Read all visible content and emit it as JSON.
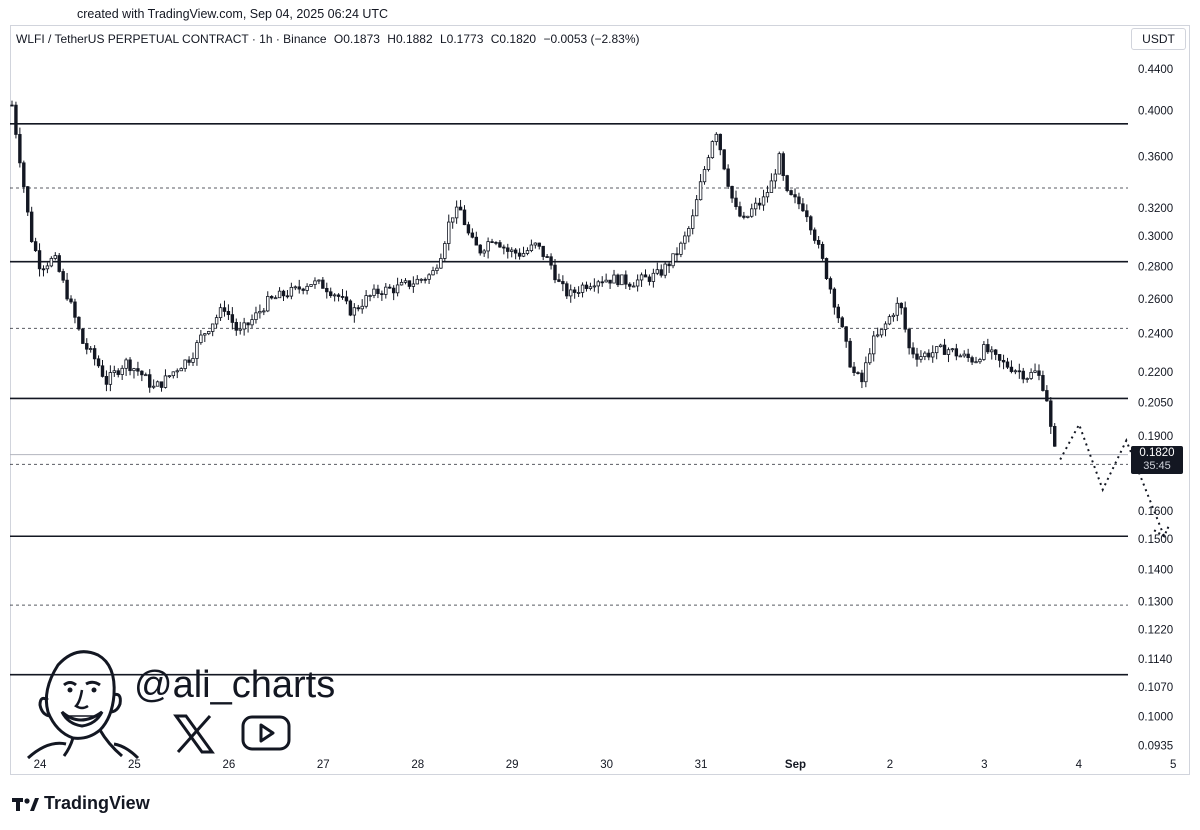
{
  "created_text": "created with TradingView.com, Sep 04, 2025 06:24 UTC",
  "header": {
    "symbol": "WLFI / TetherUS PERPETUAL CONTRACT · 1h · Binance",
    "open": "O0.1873",
    "high": "H0.1882",
    "low": "L0.1773",
    "close": "C0.1820",
    "change": "−0.0053 (−2.83%)"
  },
  "currency": "USDT",
  "last_price": "0.1820",
  "countdown": "35:45",
  "handle": "@ali_charts",
  "brand": "TradingView",
  "icons": [
    "avatar-caricature",
    "x-icon",
    "youtube-icon",
    "tradingview-logo-icon"
  ],
  "chart_data": {
    "type": "candlestick",
    "x_tick_labels": [
      "24",
      "25",
      "26",
      "27",
      "28",
      "29",
      "30",
      "31",
      "Sep",
      "2",
      "3",
      "4",
      "5"
    ],
    "y_tick_labels": [
      "0.4400",
      "0.4000",
      "0.3600",
      "0.3200",
      "0.3000",
      "0.2800",
      "0.2600",
      "0.2400",
      "0.2200",
      "0.2050",
      "0.1900",
      "0.1600",
      "0.1500",
      "0.1400",
      "0.1300",
      "0.1220",
      "0.1140",
      "0.1070",
      "0.1000",
      "0.0935"
    ],
    "y_scale": "log",
    "ylim": [
      0.0905,
      0.47
    ],
    "x_range_days": [
      24,
      35.5
    ],
    "grid": false,
    "horizontal_levels": [
      {
        "price": 0.388,
        "style": "solid"
      },
      {
        "price": 0.335,
        "style": "dashed"
      },
      {
        "price": 0.283,
        "style": "solid"
      },
      {
        "price": 0.243,
        "style": "dashed"
      },
      {
        "price": 0.207,
        "style": "solid"
      },
      {
        "price": 0.178,
        "style": "dashed"
      },
      {
        "price": 0.151,
        "style": "solid"
      },
      {
        "price": 0.129,
        "style": "dashed"
      },
      {
        "price": 0.11,
        "style": "solid"
      }
    ],
    "last_price_line": 0.182,
    "price_path_day_close": [
      [
        24.0,
        0.405
      ],
      [
        24.1,
        0.35
      ],
      [
        24.2,
        0.3
      ],
      [
        24.3,
        0.28
      ],
      [
        24.45,
        0.285
      ],
      [
        24.6,
        0.26
      ],
      [
        24.75,
        0.235
      ],
      [
        24.9,
        0.225
      ],
      [
        25.0,
        0.215
      ],
      [
        25.1,
        0.22
      ],
      [
        25.2,
        0.225
      ],
      [
        25.35,
        0.22
      ],
      [
        25.5,
        0.212
      ],
      [
        25.6,
        0.215
      ],
      [
        25.75,
        0.222
      ],
      [
        25.9,
        0.228
      ],
      [
        26.0,
        0.238
      ],
      [
        26.1,
        0.245
      ],
      [
        26.25,
        0.255
      ],
      [
        26.4,
        0.24
      ],
      [
        26.55,
        0.248
      ],
      [
        26.7,
        0.258
      ],
      [
        26.85,
        0.262
      ],
      [
        27.0,
        0.265
      ],
      [
        27.15,
        0.27
      ],
      [
        27.3,
        0.268
      ],
      [
        27.45,
        0.262
      ],
      [
        27.6,
        0.252
      ],
      [
        27.75,
        0.26
      ],
      [
        27.9,
        0.265
      ],
      [
        28.05,
        0.266
      ],
      [
        28.25,
        0.27
      ],
      [
        28.45,
        0.275
      ],
      [
        28.55,
        0.29
      ],
      [
        28.65,
        0.315
      ],
      [
        28.75,
        0.318
      ],
      [
        28.85,
        0.298
      ],
      [
        28.95,
        0.29
      ],
      [
        29.1,
        0.3
      ],
      [
        29.25,
        0.29
      ],
      [
        29.4,
        0.288
      ],
      [
        29.55,
        0.294
      ],
      [
        29.7,
        0.282
      ],
      [
        29.8,
        0.268
      ],
      [
        29.9,
        0.262
      ],
      [
        30.05,
        0.268
      ],
      [
        30.2,
        0.272
      ],
      [
        30.4,
        0.272
      ],
      [
        30.55,
        0.27
      ],
      [
        30.7,
        0.272
      ],
      [
        30.85,
        0.275
      ],
      [
        31.0,
        0.285
      ],
      [
        31.1,
        0.295
      ],
      [
        31.2,
        0.31
      ],
      [
        31.3,
        0.34
      ],
      [
        31.4,
        0.37
      ],
      [
        31.45,
        0.385
      ],
      [
        31.55,
        0.35
      ],
      [
        31.65,
        0.32
      ],
      [
        31.75,
        0.31
      ],
      [
        31.85,
        0.32
      ],
      [
        31.95,
        0.325
      ],
      [
        32.05,
        0.34
      ],
      [
        32.12,
        0.36
      ],
      [
        32.2,
        0.33
      ],
      [
        32.3,
        0.325
      ],
      [
        32.4,
        0.32
      ],
      [
        32.5,
        0.3
      ],
      [
        32.6,
        0.28
      ],
      [
        32.7,
        0.26
      ],
      [
        32.8,
        0.24
      ],
      [
        32.9,
        0.22
      ],
      [
        33.0,
        0.215
      ],
      [
        33.1,
        0.235
      ],
      [
        33.2,
        0.24
      ],
      [
        33.3,
        0.25
      ],
      [
        33.4,
        0.258
      ],
      [
        33.5,
        0.232
      ],
      [
        33.6,
        0.228
      ],
      [
        33.75,
        0.23
      ],
      [
        33.9,
        0.232
      ],
      [
        34.05,
        0.228
      ],
      [
        34.2,
        0.226
      ],
      [
        34.3,
        0.232
      ],
      [
        34.45,
        0.225
      ],
      [
        34.6,
        0.222
      ],
      [
        34.75,
        0.218
      ],
      [
        34.85,
        0.22
      ],
      [
        34.95,
        0.21
      ],
      [
        35.0,
        0.193
      ],
      [
        35.05,
        0.182
      ]
    ],
    "projection": [
      [
        35.1,
        0.18
      ],
      [
        35.3,
        0.195
      ],
      [
        35.55,
        0.168
      ],
      [
        35.8,
        0.188
      ],
      [
        36.2,
        0.151
      ]
    ]
  }
}
